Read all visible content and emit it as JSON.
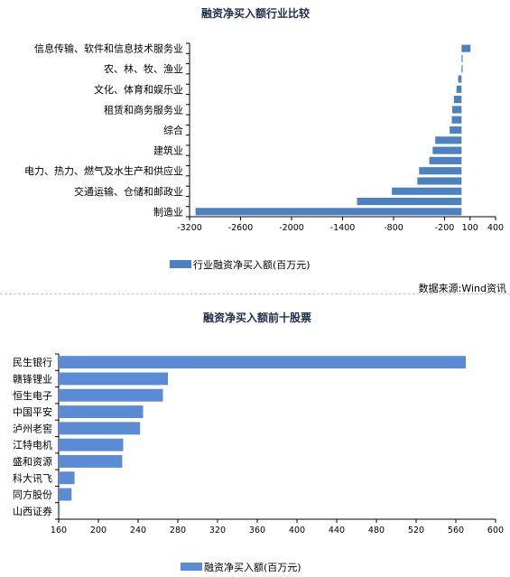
{
  "chart_data": [
    {
      "type": "bar",
      "orientation": "horizontal",
      "title": "融资净买入额行业比较",
      "categories": [
        "信息传输、软件和信息技术服务业",
        "",
        "农、林、牧、渔业",
        "",
        "文化、体育和娱乐业",
        "",
        "租赁和商务服务业",
        "",
        "综合",
        "",
        "建筑业",
        "",
        "电力、热力、燃气及水生产和供应业",
        "",
        "交通运输、仓储和邮政业",
        "",
        "制造业"
      ],
      "series": [
        {
          "name": "行业融资净买入额(百万元)",
          "values": [
            105,
            8,
            5,
            -40,
            -60,
            -90,
            -110,
            -115,
            -140,
            -310,
            -340,
            -380,
            -500,
            -520,
            -820,
            -1230,
            -3130
          ]
        }
      ],
      "xlim": [
        -3200,
        400
      ],
      "xticks": [
        "-3200",
        "-2600",
        "-2000",
        "-1400",
        "-800",
        "-200",
        "100",
        "400"
      ],
      "xtick_values": [
        -3200,
        -2600,
        -2000,
        -1400,
        -800,
        -200,
        100,
        400
      ],
      "legend_position": "bottom",
      "source": "数据来源:Wind资讯",
      "color": "#4e81c0"
    },
    {
      "type": "bar",
      "orientation": "horizontal",
      "title": "融资净买入额前十股票",
      "categories": [
        "民生银行",
        "赣锋锂业",
        "恒生电子",
        "中国平安",
        "泸州老窖",
        "江特电机",
        "盛和资源",
        "科大讯飞",
        "同方股份",
        "山西证券"
      ],
      "series": [
        {
          "name": "融资净买入额(百万元)",
          "values": [
            570,
            270,
            265,
            245,
            242,
            225,
            224,
            176,
            173,
            161
          ]
        }
      ],
      "xlim": [
        160,
        600
      ],
      "xticks": [
        "160",
        "200",
        "240",
        "280",
        "320",
        "360",
        "400",
        "440",
        "480",
        "520",
        "560",
        "600"
      ],
      "xtick_values": [
        160,
        200,
        240,
        280,
        320,
        360,
        400,
        440,
        480,
        520,
        560,
        600
      ],
      "legend_position": "bottom",
      "color": "#5b8bd4"
    }
  ]
}
